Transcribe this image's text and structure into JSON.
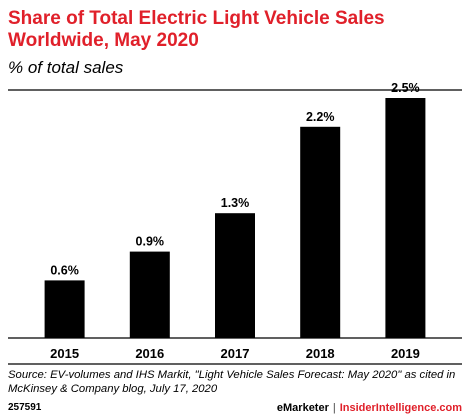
{
  "colors": {
    "title": "#e0202a",
    "bar": "#000000",
    "axis": "#000000",
    "brand_accent": "#e0202a"
  },
  "chart_data": {
    "type": "bar",
    "title": "Share of Total Electric Light Vehicle Sales Worldwide, May 2020",
    "subtitle": "% of total sales",
    "categories": [
      "2015",
      "2016",
      "2017",
      "2018",
      "2019"
    ],
    "values": [
      0.6,
      0.9,
      1.3,
      2.2,
      2.5
    ],
    "value_labels": [
      "0.6%",
      "0.9%",
      "1.3%",
      "2.2%",
      "2.5%"
    ],
    "ylim": [
      0,
      2.5
    ],
    "xlabel": "",
    "ylabel": "",
    "grid": false,
    "legend": "none"
  },
  "source": "Source: EV-volumes and IHS Markit, \"Light Vehicle Sales Forecast: May 2020\" as cited in McKinsey & Company blog, July 17, 2020",
  "footer": {
    "code": "257591",
    "brand_emarketer": "eMarketer",
    "separator": "|",
    "brand_insider": "InsiderIntelligence.com"
  }
}
